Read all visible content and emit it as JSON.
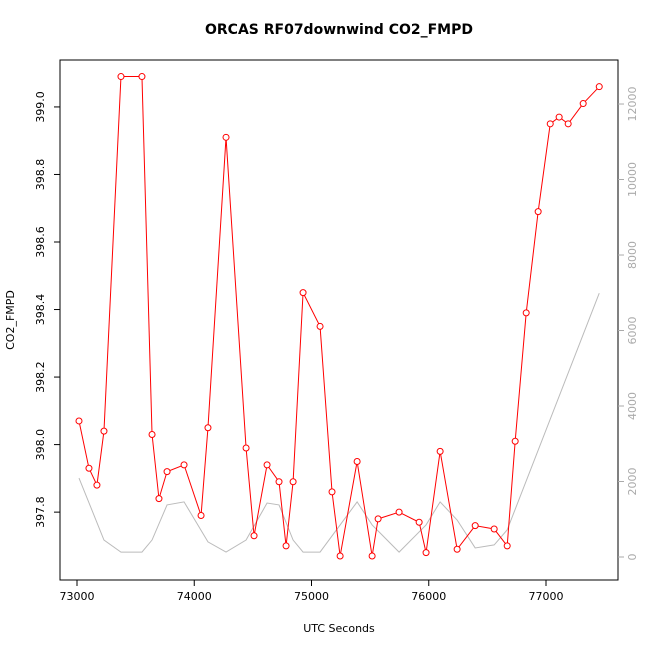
{
  "chart_data": {
    "type": "line",
    "title": "ORCAS RF07downwind CO2_FMPD",
    "x_label": "UTC Seconds",
    "y_label": "CO2_FMPD",
    "xlim": [
      72855,
      77614
    ],
    "ylim": [
      397.599,
      399.139
    ],
    "y2lim": [
      -609,
      13166
    ],
    "xticks": [
      73000,
      74000,
      75000,
      76000,
      77000
    ],
    "yticks": [
      397.8,
      {
        "value": 398,
        "label": "398.0"
      },
      398.2,
      398.4,
      398.6,
      398.8,
      {
        "value": 399,
        "label": "399.0"
      }
    ],
    "y2ticks": [
      0,
      2000,
      4000,
      6000,
      8000,
      10000,
      12000
    ],
    "y2color": "#aaaaaa",
    "series": [
      {
        "color": "#bbbbbb",
        "axis": "y2",
        "markers": false,
        "x": [
          73017,
          73230,
          73375,
          73554,
          73640,
          73768,
          73913,
          74117,
          74271,
          74442,
          74621,
          74723,
          74843,
          74928,
          75073,
          75244,
          75389,
          75517,
          75747,
          75977,
          76097,
          76242,
          76396,
          76558,
          76669,
          77454
        ],
        "values": [
          2093,
          450,
          130,
          130,
          450,
          1380,
          1460,
          400,
          130,
          450,
          1430,
          1380,
          450,
          130,
          130,
          850,
          1460,
          850,
          130,
          850,
          1460,
          980,
          240,
          320,
          720,
          6990
        ]
      },
      {
        "color": "#ff0000",
        "markers": true,
        "x": [
          73017,
          73102,
          73170,
          73230,
          73375,
          73554,
          73640,
          73699,
          73768,
          73913,
          74058,
          74117,
          74271,
          74442,
          74510,
          74621,
          74723,
          74783,
          74843,
          74928,
          75073,
          75175,
          75244,
          75389,
          75517,
          75568,
          75747,
          75918,
          75977,
          76097,
          76242,
          76396,
          76558,
          76669,
          76737,
          76831,
          76933,
          77036,
          77112,
          77189,
          77317,
          77454
        ],
        "values": [
          398.07,
          397.93,
          397.88,
          398.04,
          399.09,
          399.09,
          398.03,
          397.84,
          397.92,
          397.94,
          397.79,
          398.05,
          398.91,
          397.99,
          397.73,
          397.94,
          397.89,
          397.7,
          397.89,
          398.45,
          398.35,
          397.86,
          397.67,
          397.95,
          397.67,
          397.78,
          397.8,
          397.77,
          397.68,
          397.98,
          397.69,
          397.76,
          397.75,
          397.7,
          398.01,
          398.39,
          398.69,
          398.95,
          398.97,
          398.95,
          399.01,
          399.06
        ]
      }
    ]
  }
}
